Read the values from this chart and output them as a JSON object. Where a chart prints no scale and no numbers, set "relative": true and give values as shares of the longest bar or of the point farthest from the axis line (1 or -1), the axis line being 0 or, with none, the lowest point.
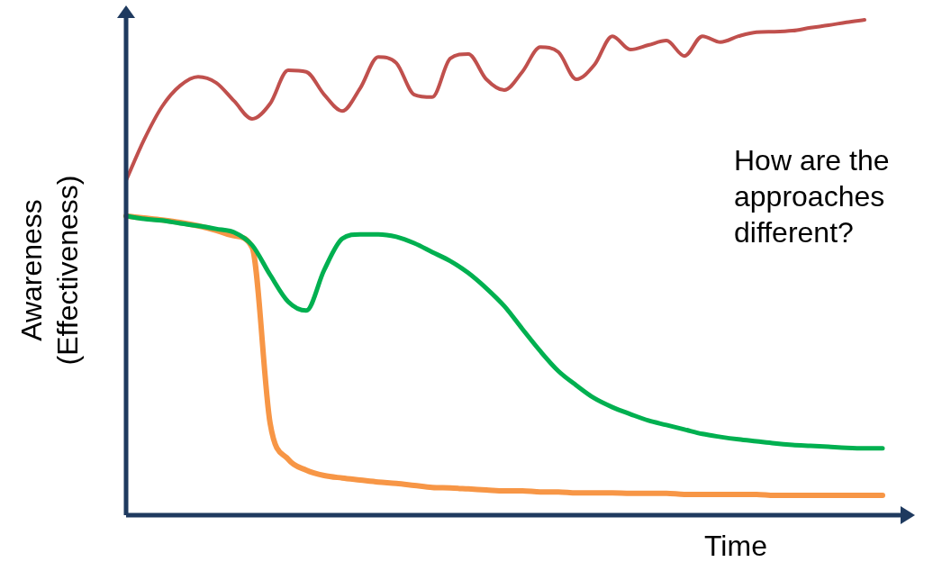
{
  "chart_data": {
    "type": "line",
    "relative": true,
    "ylabel": "Awareness (Effectiveness)",
    "xlabel": "Time",
    "annotations": [
      "How are the approaches different?"
    ],
    "marker": "none",
    "line_style": "solid",
    "categories": [
      null,
      null,
      null,
      null,
      null,
      null,
      null,
      null,
      null,
      null,
      null,
      null,
      null,
      null,
      null,
      null,
      null,
      null,
      null,
      null,
      null,
      null,
      null,
      null,
      null,
      null,
      null,
      null,
      null,
      null,
      null,
      null,
      null,
      null,
      null,
      null,
      null,
      null,
      null,
      null,
      null,
      null,
      null
    ],
    "series": [
      {
        "color": "#c0504d",
        "values": [
          0.676,
          0.758,
          0.825,
          0.867,
          0.885,
          0.873,
          0.836,
          0.8,
          0.831,
          0.898,
          0.895,
          0.849,
          0.816,
          0.862,
          0.925,
          0.913,
          0.849,
          0.844,
          0.922,
          0.931,
          0.88,
          0.858,
          0.895,
          0.945,
          0.935,
          0.88,
          0.909,
          0.967,
          0.94,
          0.949,
          0.958,
          0.927,
          0.967,
          0.955,
          0.967,
          0.975,
          0.976,
          0.978,
          0.984,
          0.989,
          0.995,
          1,
          null
        ]
      },
      {
        "color": "#00b050",
        "values": [
          0.604,
          0.598,
          0.595,
          0.589,
          0.584,
          0.578,
          0.571,
          0.545,
          0.485,
          0.431,
          0.413,
          0.495,
          0.558,
          0.567,
          0.567,
          0.562,
          0.549,
          0.531,
          0.513,
          0.489,
          0.458,
          0.422,
          0.376,
          0.331,
          0.291,
          0.262,
          0.236,
          0.218,
          0.204,
          0.191,
          0.182,
          0.173,
          0.164,
          0.158,
          0.153,
          0.149,
          0.145,
          0.142,
          0.14,
          0.138,
          0.136,
          0.135,
          0.135
        ]
      },
      {
        "color": "#f79646",
        "values": [
          0.604,
          0.6,
          0.596,
          0.591,
          0.584,
          0.575,
          0.564,
          0.54,
          0.185,
          0.113,
          0.091,
          0.08,
          0.075,
          0.071,
          0.067,
          0.064,
          0.06,
          0.056,
          0.055,
          0.053,
          0.051,
          0.049,
          0.049,
          0.047,
          0.047,
          0.045,
          0.045,
          0.045,
          0.044,
          0.044,
          0.044,
          0.042,
          0.042,
          0.042,
          0.042,
          0.042,
          0.04,
          0.04,
          0.04,
          0.04,
          0.04,
          0.04,
          0.04
        ]
      }
    ]
  }
}
